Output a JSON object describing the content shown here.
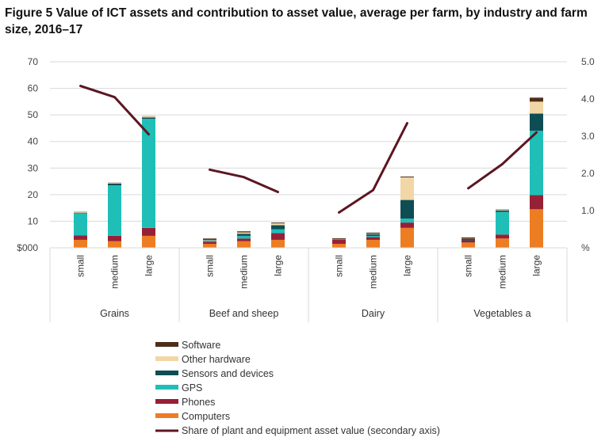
{
  "chart_data": {
    "type": "bar",
    "title": "Figure 5 Value of ICT assets and contribution to asset value, average per farm, by industry and farm size, 2016–17",
    "stacked": true,
    "ylim": [
      0,
      70
    ],
    "yticks": [
      "$000",
      "10",
      "20",
      "30",
      "40",
      "50",
      "60",
      "70"
    ],
    "y2lim": [
      0,
      5
    ],
    "y2ticks": [
      "%",
      "1.0",
      "2.0",
      "3.0",
      "4.0",
      "5.0"
    ],
    "grid": true,
    "legend_position": "bottom-center",
    "groups": [
      {
        "name": "Grains",
        "categories": [
          "small",
          "medium",
          "large"
        ]
      },
      {
        "name": "Beef and sheep",
        "categories": [
          "small",
          "medium",
          "large"
        ]
      },
      {
        "name": "Dairy",
        "categories": [
          "small",
          "medium",
          "large"
        ]
      },
      {
        "name": "Vegetables a",
        "categories": [
          "small",
          "medium",
          "large"
        ]
      }
    ],
    "series": [
      {
        "name": "Computers",
        "color": "#ED7D23",
        "values": [
          3,
          2.5,
          4.5,
          1.5,
          2.5,
          3,
          1.5,
          3,
          7.5,
          2,
          3.5,
          14.5
        ]
      },
      {
        "name": "Phones",
        "color": "#962036",
        "values": [
          1.7,
          2,
          3,
          0.8,
          1,
          2.5,
          1.5,
          1,
          2,
          0.8,
          1.5,
          5.3
        ]
      },
      {
        "name": "GPS",
        "color": "#1FBFB8",
        "values": [
          8.3,
          19,
          41,
          0.3,
          1,
          1.5,
          0,
          0.5,
          1.5,
          0,
          8.5,
          24.2
        ]
      },
      {
        "name": "Sensors and devices",
        "color": "#0E4D54",
        "values": [
          0.2,
          0.7,
          0.5,
          0.2,
          0.8,
          1.5,
          0.2,
          0.6,
          7,
          0.5,
          0.6,
          6.5
        ]
      },
      {
        "name": "Other hardware",
        "color": "#F2D7A6",
        "values": [
          0.2,
          0.2,
          0.4,
          0.2,
          0.5,
          0.7,
          0.1,
          0.2,
          8.5,
          0.1,
          0.3,
          4.5
        ]
      },
      {
        "name": "Software",
        "color": "#4E2E1A",
        "values": [
          0.1,
          0.1,
          0.1,
          0.5,
          0.4,
          0.3,
          0.3,
          0.4,
          0.3,
          0.5,
          0.1,
          1.5
        ]
      }
    ],
    "line_series": {
      "name": "Share of plant and equipment asset value (secondary axis)",
      "color": "#5C1622",
      "axis": "secondary",
      "values": [
        4.35,
        4.05,
        3.05,
        2.1,
        1.9,
        1.5,
        0.95,
        1.55,
        3.35,
        1.6,
        2.25,
        3.1
      ]
    }
  }
}
